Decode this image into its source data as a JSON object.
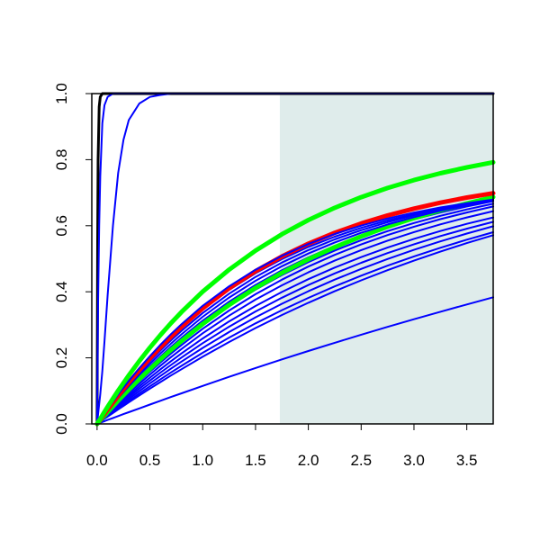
{
  "chart_data": {
    "type": "line",
    "title": "",
    "xlabel": "",
    "ylabel": "",
    "xlim": [
      -0.05,
      3.75
    ],
    "ylim": [
      0,
      1.0
    ],
    "x_ticks": [
      0.0,
      0.5,
      1.0,
      1.5,
      2.0,
      2.5,
      3.0,
      3.5
    ],
    "x_tick_labels": [
      "0.0",
      "0.5",
      "1.0",
      "1.5",
      "2.0",
      "2.5",
      "3.0",
      "3.5"
    ],
    "y_ticks": [
      0.0,
      0.2,
      0.4,
      0.6,
      0.8,
      1.0
    ],
    "y_tick_labels": [
      "0.0",
      "0.2",
      "0.4",
      "0.6",
      "0.8",
      "1.0"
    ],
    "grid": false,
    "legend": "none",
    "shaded_region": {
      "x_from": 1.73,
      "x_to": 3.75,
      "color": "#dfeceb"
    },
    "x": [
      0,
      0.005,
      0.01,
      0.02,
      0.03,
      0.05,
      0.07,
      0.1,
      0.15,
      0.2,
      0.25,
      0.3,
      0.4,
      0.5,
      0.6,
      0.7,
      0.8,
      1.0,
      1.25,
      1.5,
      1.75,
      2.0,
      2.25,
      2.5,
      2.75,
      3.0,
      3.25,
      3.5,
      3.75
    ],
    "series": [
      {
        "color": "#000000",
        "width": 3,
        "values": [
          0,
          0.55,
          0.8,
          0.96,
          0.99,
          1.0,
          1.0,
          1.0,
          1.0,
          1.0,
          1.0,
          1.0,
          1.0,
          1.0,
          1.0,
          1.0,
          1.0,
          1.0,
          1.0,
          1.0,
          1.0,
          1.0,
          1.0,
          1.0,
          1.0,
          1.0,
          1.0,
          1.0,
          1.0
        ]
      },
      {
        "color": "#0000ff",
        "width": 2,
        "values": [
          0,
          0.2,
          0.37,
          0.6,
          0.75,
          0.91,
          0.965,
          0.99,
          1.0,
          1.0,
          1.0,
          1.0,
          1.0,
          1.0,
          1.0,
          1.0,
          1.0,
          1.0,
          1.0,
          1.0,
          1.0,
          1.0,
          1.0,
          1.0,
          1.0,
          1.0,
          1.0,
          1.0,
          1.0
        ]
      },
      {
        "color": "#0000ff",
        "width": 2,
        "values": [
          0,
          0.015,
          0.03,
          0.06,
          0.09,
          0.16,
          0.25,
          0.39,
          0.6,
          0.76,
          0.86,
          0.92,
          0.97,
          0.99,
          0.996,
          1.0,
          1.0,
          1.0,
          1.0,
          1.0,
          1.0,
          1.0,
          1.0,
          1.0,
          1.0,
          1.0,
          1.0,
          1.0,
          1.0
        ]
      },
      {
        "color": "#0000ff",
        "width": 2,
        "values": [
          0,
          0.0006,
          0.0012,
          0.0024,
          0.0036,
          0.006,
          0.0083,
          0.0119,
          0.0178,
          0.0237,
          0.0296,
          0.0354,
          0.047,
          0.0586,
          0.0701,
          0.0814,
          0.0927,
          0.1151,
          0.1425,
          0.1692,
          0.1953,
          0.2208,
          0.2456,
          0.27,
          0.2937,
          0.3169,
          0.3395,
          0.3617,
          0.3833
        ]
      },
      {
        "color": "#0000ff",
        "width": 2,
        "values": [
          0,
          0.0011,
          0.0022,
          0.0045,
          0.0067,
          0.0111,
          0.0156,
          0.0222,
          0.0331,
          0.0439,
          0.0546,
          0.0652,
          0.0862,
          0.1067,
          0.1268,
          0.1465,
          0.1658,
          0.2032,
          0.248,
          0.2901,
          0.3296,
          0.3668,
          0.4017,
          0.4346,
          0.4654,
          0.4944,
          0.5216,
          0.5473,
          0.5713
        ]
      },
      {
        "color": "#0000ff",
        "width": 2,
        "values": [
          0,
          0.0012,
          0.0024,
          0.0048,
          0.0072,
          0.012,
          0.0167,
          0.0238,
          0.0355,
          0.0471,
          0.0585,
          0.0698,
          0.0921,
          0.1139,
          0.1351,
          0.1559,
          0.1761,
          0.2152,
          0.2613,
          0.3043,
          0.3443,
          0.3816,
          0.4164,
          0.4488,
          0.479,
          0.5071,
          0.5333,
          0.5577,
          0.5804
        ]
      },
      {
        "color": "#0000ff",
        "width": 2,
        "values": [
          0,
          0.0013,
          0.0026,
          0.0052,
          0.0078,
          0.013,
          0.0181,
          0.0258,
          0.0385,
          0.051,
          0.0633,
          0.0755,
          0.0993,
          0.1226,
          0.1452,
          0.1673,
          0.1887,
          0.2299,
          0.2781,
          0.3226,
          0.3637,
          0.4017,
          0.4368,
          0.4693,
          0.4993,
          0.5271,
          0.5527,
          0.5764,
          0.5983
        ]
      },
      {
        "color": "#0000ff",
        "width": 2,
        "values": [
          0,
          0.0014,
          0.0028,
          0.0056,
          0.0084,
          0.014,
          0.0195,
          0.0278,
          0.0414,
          0.0548,
          0.068,
          0.0811,
          0.1066,
          0.1313,
          0.1553,
          0.1786,
          0.2012,
          0.2444,
          0.2944,
          0.3402,
          0.3821,
          0.4205,
          0.4556,
          0.4877,
          0.5171,
          0.544,
          0.5686,
          0.5911,
          0.6117
        ]
      },
      {
        "color": "#0000ff",
        "width": 2,
        "values": [
          0,
          0.0015,
          0.003,
          0.006,
          0.009,
          0.015,
          0.0209,
          0.0298,
          0.0444,
          0.0587,
          0.0728,
          0.0867,
          0.1138,
          0.14,
          0.1653,
          0.1898,
          0.2135,
          0.2586,
          0.3103,
          0.357,
          0.3995,
          0.4381,
          0.4732,
          0.505,
          0.5339,
          0.5602,
          0.584,
          0.6056,
          0.6252
        ]
      },
      {
        "color": "#0000ff",
        "width": 2,
        "values": [
          0,
          0.0016,
          0.0032,
          0.0064,
          0.0096,
          0.016,
          0.0224,
          0.0319,
          0.0475,
          0.0628,
          0.0779,
          0.0927,
          0.1216,
          0.1494,
          0.1762,
          0.2021,
          0.2271,
          0.2743,
          0.3279,
          0.3762,
          0.4197,
          0.4589,
          0.4942,
          0.5261,
          0.5548,
          0.5807,
          0.604,
          0.6251,
          0.6441
        ]
      },
      {
        "color": "#0000ff",
        "width": 2,
        "values": [
          0,
          0.0017,
          0.0034,
          0.0068,
          0.0102,
          0.017,
          0.0238,
          0.0339,
          0.0504,
          0.0667,
          0.0826,
          0.0982,
          0.1287,
          0.158,
          0.1861,
          0.2131,
          0.2391,
          0.2881,
          0.3433,
          0.3926,
          0.4367,
          0.4762,
          0.5116,
          0.5432,
          0.5716,
          0.597,
          0.6198,
          0.6401,
          0.6584
        ]
      },
      {
        "color": "#0000ff",
        "width": 2,
        "values": [
          0,
          0.0018,
          0.0036,
          0.0072,
          0.0108,
          0.018,
          0.0252,
          0.0358,
          0.0532,
          0.0703,
          0.087,
          0.1034,
          0.1352,
          0.1657,
          0.1949,
          0.2229,
          0.2497,
          0.3001,
          0.3564,
          0.4063,
          0.4506,
          0.4899,
          0.5249,
          0.556,
          0.5836,
          0.6081,
          0.63,
          0.6494,
          0.6666
        ]
      },
      {
        "color": "#0000ff",
        "width": 2,
        "values": [
          0,
          0.0019,
          0.0038,
          0.0076,
          0.0114,
          0.019,
          0.0266,
          0.0378,
          0.0562,
          0.0741,
          0.0917,
          0.1088,
          0.1421,
          0.1739,
          0.2042,
          0.2332,
          0.2609,
          0.3126,
          0.3701,
          0.4206,
          0.465,
          0.5041,
          0.5386,
          0.569,
          0.5957,
          0.6193,
          0.6401,
          0.6584,
          0.6745
        ]
      },
      {
        "color": "#00ff00",
        "width": 5,
        "values": [
          0,
          0.0018,
          0.0036,
          0.0072,
          0.0108,
          0.018,
          0.0251,
          0.0358,
          0.0532,
          0.0703,
          0.0871,
          0.1035,
          0.1355,
          0.1662,
          0.1956,
          0.2239,
          0.2511,
          0.3024,
          0.3602,
          0.4116,
          0.4574,
          0.4983,
          0.5349,
          0.5676,
          0.5969,
          0.6231,
          0.6466,
          0.6677,
          0.6866
        ]
      },
      {
        "color": "#0000ff",
        "width": 2,
        "values": [
          0,
          0.002,
          0.004,
          0.008,
          0.012,
          0.02,
          0.028,
          0.0398,
          0.0591,
          0.0779,
          0.0963,
          0.1142,
          0.1489,
          0.1819,
          0.2133,
          0.2431,
          0.2715,
          0.3243,
          0.3825,
          0.4332,
          0.4773,
          0.5157,
          0.5492,
          0.5784,
          0.6038,
          0.626,
          0.6453,
          0.6621,
          0.6768
        ]
      },
      {
        "color": "#0000ff",
        "width": 2,
        "values": [
          0,
          0.0021,
          0.0042,
          0.0084,
          0.0126,
          0.021,
          0.0294,
          0.0418,
          0.062,
          0.0817,
          0.1009,
          0.1196,
          0.1557,
          0.1899,
          0.2223,
          0.253,
          0.282,
          0.3357,
          0.3944,
          0.445,
          0.4886,
          0.5262,
          0.5586,
          0.5865,
          0.6106,
          0.6313,
          0.6492,
          0.6646,
          0.6779
        ]
      },
      {
        "color": "#0000ff",
        "width": 2,
        "values": [
          0,
          0.0022,
          0.0044,
          0.0088,
          0.0132,
          0.022,
          0.0308,
          0.0438,
          0.0649,
          0.0854,
          0.1054,
          0.1249,
          0.1623,
          0.1977,
          0.2311,
          0.2626,
          0.2923,
          0.3468,
          0.4058,
          0.4561,
          0.499,
          0.5356,
          0.5668,
          0.5934,
          0.6161,
          0.6354,
          0.6519,
          0.6659,
          0.6779
        ]
      },
      {
        "color": "#ff0000",
        "width": 5,
        "values": [
          0,
          0.0022,
          0.0044,
          0.0088,
          0.0132,
          0.022,
          0.0307,
          0.0437,
          0.0648,
          0.0854,
          0.1055,
          0.125,
          0.1627,
          0.1984,
          0.2322,
          0.2641,
          0.2943,
          0.3499,
          0.4105,
          0.4625,
          0.5072,
          0.5456,
          0.5785,
          0.6068,
          0.6311,
          0.6519,
          0.6698,
          0.6852,
          0.6984
        ]
      },
      {
        "color": "#0000ff",
        "width": 2,
        "values": [
          0,
          0.0023,
          0.0046,
          0.0092,
          0.0138,
          0.023,
          0.0322,
          0.0457,
          0.0677,
          0.0891,
          0.1099,
          0.1301,
          0.1688,
          0.2053,
          0.2397,
          0.272,
          0.3023,
          0.3575,
          0.4167,
          0.4667,
          0.509,
          0.5447,
          0.5748,
          0.6003,
          0.6218,
          0.6399,
          0.6553,
          0.6682,
          0.6792
        ]
      },
      {
        "color": "#00ff00",
        "width": 5,
        "values": [
          0,
          0.0026,
          0.0052,
          0.0104,
          0.0156,
          0.026,
          0.0364,
          0.0517,
          0.0766,
          0.1007,
          0.1241,
          0.1468,
          0.1902,
          0.231,
          0.2693,
          0.3052,
          0.3389,
          0.4004,
          0.4671,
          0.5246,
          0.5743,
          0.6172,
          0.6543,
          0.6864,
          0.7142,
          0.7381,
          0.7588,
          0.7767,
          0.7922
        ]
      }
    ]
  }
}
